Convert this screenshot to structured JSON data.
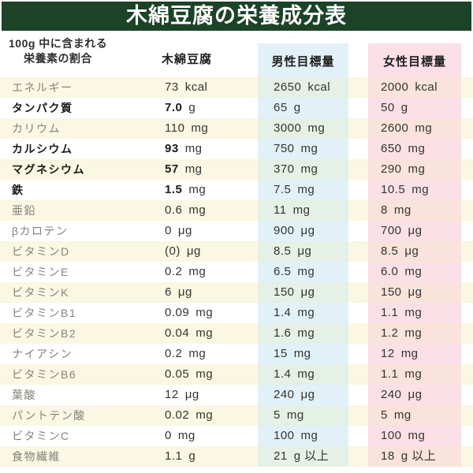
{
  "title": "木綿豆腐の栄養成分表",
  "header": {
    "nutrient_line1": "100g 中に含まれる",
    "nutrient_line2": "栄養素の割合",
    "tofu": "木綿豆腐",
    "male": "男性目標量",
    "female": "女性目標量"
  },
  "colors": {
    "title_bar": "#1c4228",
    "title_text": "#ffffff",
    "stripe_cream": "#faf7e2",
    "male_blue": "#e2f1f8",
    "male_green": "#e5f0e6",
    "female_pink": "#fbe0e7",
    "female_salmon": "#f9e3db",
    "label_gray": "#85837c",
    "text_dark": "#35342f",
    "bold_dark": "#1b1b19"
  },
  "chart_data": {
    "type": "table",
    "title": "木綿豆腐の栄養成分表",
    "columns": [
      "100g 中に含まれる栄養素の割合",
      "木綿豆腐",
      "男性目標量",
      "女性目標量"
    ],
    "rows": [
      {
        "label": "エネルギー",
        "bold": false,
        "tofu": {
          "num": "73",
          "unit": "kcal"
        },
        "male": {
          "num": "2650",
          "unit": "kcal"
        },
        "female": {
          "num": "2000",
          "unit": "kcal"
        }
      },
      {
        "label": "タンパク質",
        "bold": true,
        "tofu": {
          "num": "7.0",
          "unit": "g"
        },
        "male": {
          "num": "65",
          "unit": "g"
        },
        "female": {
          "num": "50",
          "unit": "g"
        }
      },
      {
        "label": "カリウム",
        "bold": false,
        "tofu": {
          "num": "110",
          "unit": "mg"
        },
        "male": {
          "num": "3000",
          "unit": "mg"
        },
        "female": {
          "num": "2600",
          "unit": "mg"
        }
      },
      {
        "label": "カルシウム",
        "bold": true,
        "tofu": {
          "num": "93",
          "unit": "mg"
        },
        "male": {
          "num": "750",
          "unit": "mg"
        },
        "female": {
          "num": "650",
          "unit": "mg"
        }
      },
      {
        "label": "マグネシウム",
        "bold": true,
        "tofu": {
          "num": "57",
          "unit": "mg"
        },
        "male": {
          "num": "370",
          "unit": "mg"
        },
        "female": {
          "num": "290",
          "unit": "mg"
        }
      },
      {
        "label": "鉄",
        "bold": true,
        "tofu": {
          "num": "1.5",
          "unit": "mg"
        },
        "male": {
          "num": "7.5",
          "unit": "mg"
        },
        "female": {
          "num": "10.5",
          "unit": "mg"
        }
      },
      {
        "label": "亜鉛",
        "bold": false,
        "tofu": {
          "num": "0.6",
          "unit": "mg"
        },
        "male": {
          "num": "11",
          "unit": "mg"
        },
        "female": {
          "num": "8",
          "unit": "mg"
        }
      },
      {
        "label": "βカロテン",
        "bold": false,
        "tofu": {
          "num": "0",
          "unit": "μg"
        },
        "male": {
          "num": "900",
          "unit": "μg"
        },
        "female": {
          "num": "700",
          "unit": "μg"
        }
      },
      {
        "label": "ビタミンD",
        "bold": false,
        "tofu": {
          "num": "(0)",
          "unit": "μg"
        },
        "male": {
          "num": "8.5",
          "unit": "μg"
        },
        "female": {
          "num": "8.5",
          "unit": "μg"
        }
      },
      {
        "label": "ビタミンE",
        "bold": false,
        "tofu": {
          "num": "0.2",
          "unit": "mg"
        },
        "male": {
          "num": "6.5",
          "unit": "mg"
        },
        "female": {
          "num": "6.0",
          "unit": "mg"
        }
      },
      {
        "label": "ビタミンK",
        "bold": false,
        "tofu": {
          "num": "6",
          "unit": "μg"
        },
        "male": {
          "num": "150",
          "unit": "μg"
        },
        "female": {
          "num": "150",
          "unit": "μg"
        }
      },
      {
        "label": "ビタミンB1",
        "bold": false,
        "tofu": {
          "num": "0.09",
          "unit": "mg"
        },
        "male": {
          "num": "1.4",
          "unit": "mg"
        },
        "female": {
          "num": "1.1",
          "unit": "mg"
        }
      },
      {
        "label": "ビタミンB2",
        "bold": false,
        "tofu": {
          "num": "0.04",
          "unit": "mg"
        },
        "male": {
          "num": "1.6",
          "unit": "mg"
        },
        "female": {
          "num": "1.2",
          "unit": "mg"
        }
      },
      {
        "label": "ナイアシン",
        "bold": false,
        "tofu": {
          "num": "0.2",
          "unit": "mg"
        },
        "male": {
          "num": "15",
          "unit": "mg"
        },
        "female": {
          "num": "12",
          "unit": "mg"
        }
      },
      {
        "label": "ビタミンB6",
        "bold": false,
        "tofu": {
          "num": "0.05",
          "unit": "mg"
        },
        "male": {
          "num": "1.4",
          "unit": "mg"
        },
        "female": {
          "num": "1.1",
          "unit": "mg"
        }
      },
      {
        "label": "葉酸",
        "bold": false,
        "tofu": {
          "num": "12",
          "unit": "μg"
        },
        "male": {
          "num": "240",
          "unit": "μg"
        },
        "female": {
          "num": "240",
          "unit": "μg"
        }
      },
      {
        "label": "パントテン酸",
        "bold": false,
        "tofu": {
          "num": "0.02",
          "unit": "mg"
        },
        "male": {
          "num": "5",
          "unit": "mg"
        },
        "female": {
          "num": "5",
          "unit": "mg"
        }
      },
      {
        "label": "ビタミンC",
        "bold": false,
        "tofu": {
          "num": "0",
          "unit": "mg"
        },
        "male": {
          "num": "100",
          "unit": "mg"
        },
        "female": {
          "num": "100",
          "unit": "mg"
        }
      },
      {
        "label": "食物繊維",
        "bold": false,
        "tofu": {
          "num": "1.1",
          "unit": "g"
        },
        "male": {
          "num": "21",
          "unit": "g 以上"
        },
        "female": {
          "num": "18",
          "unit": "g 以上"
        }
      }
    ]
  }
}
